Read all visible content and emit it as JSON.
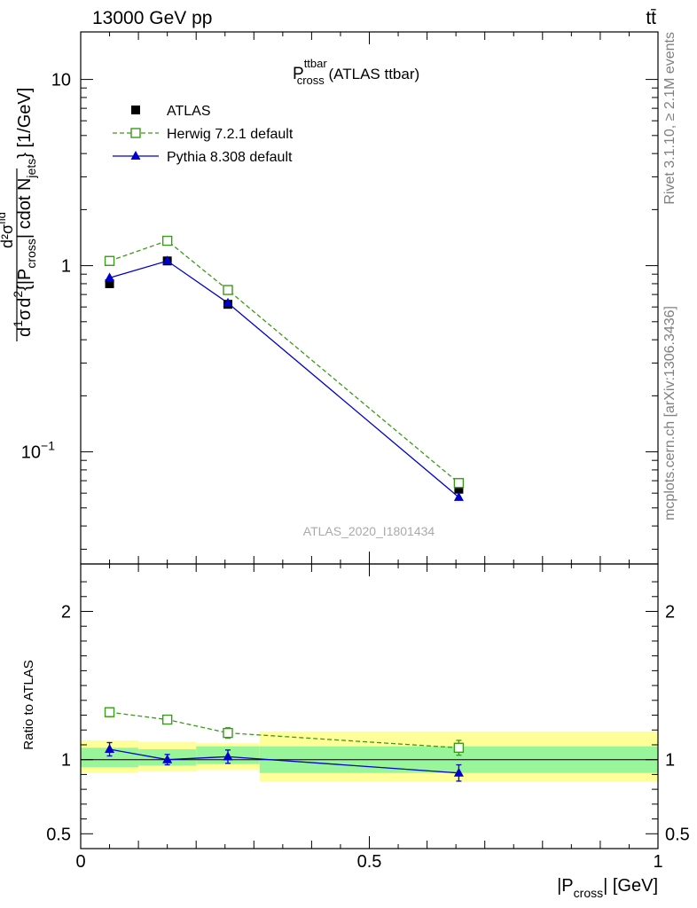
{
  "header": {
    "left": "13000 GeV pp",
    "right": "tt̄"
  },
  "side_labels": {
    "rivet": "Rivet 3.1.10, ≥ 2.1M events",
    "mcplots": "mcplots.cern.ch [arXiv:1306.3436]"
  },
  "plot_title": {
    "main": "P",
    "sup": "ttbar",
    "sub": "cross",
    "suffix": " (ATLAS ttbar)"
  },
  "watermark": "ATLAS_2020_I1801434",
  "legend": [
    {
      "label": "ATLAS",
      "color": "#000000",
      "marker": "square-filled"
    },
    {
      "label": "Herwig 7.2.1 default",
      "color": "#3a9a1a",
      "marker": "square-open"
    },
    {
      "label": "Pythia 8.308 default",
      "color": "#0000cc",
      "marker": "triangle-filled"
    }
  ],
  "ylabel_main": "d(1/σ) d²σ^fid / d²{|P_cross| cdot N_jets} [1/GeV]",
  "ylabel_ratio": "Ratio to ATLAS",
  "xlabel": {
    "pre": "|P",
    "sub": "cross",
    "post": "| [GeV]"
  },
  "colors": {
    "herwig": "#3a9a1a",
    "pythia": "#0000cc",
    "data": "#000000",
    "band_inner": "#99f599",
    "band_outer": "#ffff99"
  },
  "chart_data": {
    "type": "line",
    "x_range": [
      0,
      1
    ],
    "x_ticks": [
      {
        "v": 0,
        "label": "0"
      },
      {
        "v": 0.5,
        "label": "0.5"
      },
      {
        "v": 1,
        "label": "1"
      }
    ],
    "main": {
      "scale": "log",
      "ylim": [
        0.025,
        18
      ],
      "y_ticks": [
        {
          "v": 0.1,
          "label": "10",
          "sup": "−1"
        },
        {
          "v": 1,
          "label": "1",
          "sup": ""
        },
        {
          "v": 10,
          "label": "10",
          "sup": ""
        }
      ],
      "series": [
        {
          "name": "ATLAS",
          "x": [
            0.05,
            0.15,
            0.255,
            0.655
          ],
          "y": [
            0.8,
            1.06,
            0.62,
            0.063
          ]
        },
        {
          "name": "Herwig 7.2.1 default",
          "x": [
            0.05,
            0.15,
            0.255,
            0.655
          ],
          "y": [
            1.06,
            1.36,
            0.74,
            0.068
          ]
        },
        {
          "name": "Pythia 8.308 default",
          "x": [
            0.05,
            0.15,
            0.255,
            0.655
          ],
          "y": [
            0.86,
            1.06,
            0.63,
            0.057
          ]
        }
      ]
    },
    "ratio": {
      "ylim": [
        0.4,
        2.32
      ],
      "y_ticks": [
        {
          "v": 0.5,
          "label": "0.5"
        },
        {
          "v": 1,
          "label": "1"
        },
        {
          "v": 2,
          "label": "2"
        }
      ],
      "bins": [
        {
          "x0": 0.0,
          "x1": 0.1,
          "inner": [
            0.95,
            1.08
          ],
          "outer": [
            0.91,
            1.13
          ]
        },
        {
          "x0": 0.1,
          "x1": 0.2,
          "inner": [
            0.96,
            1.07
          ],
          "outer": [
            0.92,
            1.12
          ]
        },
        {
          "x0": 0.2,
          "x1": 0.31,
          "inner": [
            0.97,
            1.09
          ],
          "outer": [
            0.93,
            1.11
          ]
        },
        {
          "x0": 0.31,
          "x1": 1.0,
          "inner": [
            0.91,
            1.09
          ],
          "outer": [
            0.85,
            1.19
          ]
        }
      ],
      "series": [
        {
          "name": "Herwig 7.2.1 default",
          "x": [
            0.05,
            0.15,
            0.255,
            0.655
          ],
          "y": [
            1.32,
            1.27,
            1.18,
            1.08
          ],
          "err": [
            0.03,
            0.025,
            0.035,
            0.05
          ]
        },
        {
          "name": "Pythia 8.308 default",
          "x": [
            0.05,
            0.15,
            0.255,
            0.655
          ],
          "y": [
            1.07,
            1.0,
            1.02,
            0.91
          ],
          "err": [
            0.045,
            0.035,
            0.045,
            0.055
          ]
        }
      ]
    }
  }
}
